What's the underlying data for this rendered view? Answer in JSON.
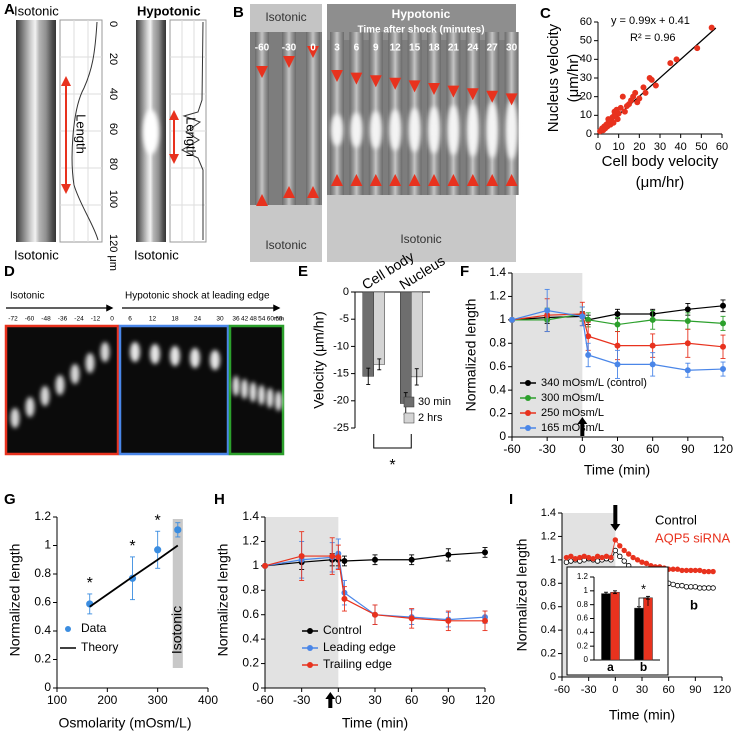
{
  "panels": {
    "A": {
      "panel": "A",
      "top_left": "Isotonic",
      "top_right": "Hypotonic",
      "bottom_left": "Isotonic",
      "bottom_right": "Isotonic",
      "length_left": "Length",
      "length_right": "Length",
      "ticks": [
        0,
        20,
        40,
        60,
        80,
        100,
        "120 μm"
      ]
    },
    "B": {
      "panel": "B",
      "isotonic_top": "Isotonic",
      "hypotonic": "Hypotonic",
      "subtitle": "Time after shock (minutes)",
      "times": [
        -60,
        -30,
        0,
        3,
        6,
        9,
        12,
        15,
        18,
        21,
        24,
        27,
        30
      ],
      "isotonic_bottom_left": "Isotonic",
      "isotonic_bottom_right": "Isotonic"
    },
    "D": {
      "panel": "D",
      "isotonic": "Isotonic",
      "hypotonic": "Hypotonic shock at leading edge",
      "times": [
        -72,
        -60,
        -48,
        -36,
        -24,
        -12,
        0,
        6,
        12,
        18,
        24,
        30,
        36,
        42,
        48,
        54,
        60,
        66
      ],
      "unit": "min"
    }
  },
  "chart_data": [
    {
      "panel": "C",
      "type": "scatter",
      "x_label": [
        "Cell body velocity",
        "(μm/hr)"
      ],
      "y_label": [
        "Nucleus velocity",
        "(μm/hr)"
      ],
      "annotations": [
        "y = 0.99x + 0.41",
        "R² = 0.96"
      ],
      "x": [
        1,
        2,
        2.5,
        3,
        3.5,
        4,
        4.5,
        5,
        5,
        6,
        6,
        7,
        7.5,
        8,
        8,
        9,
        9.5,
        10,
        11,
        12,
        13,
        14,
        15,
        16,
        17,
        18,
        19,
        20,
        22,
        23,
        25,
        26,
        28,
        35,
        38,
        48,
        55
      ],
      "series": [
        {
          "color": "#e8321e",
          "values": [
            1.5,
            3,
            2,
            4,
            3,
            5,
            4,
            6,
            8,
            5,
            7,
            9,
            6,
            10,
            12,
            13,
            8,
            11,
            14,
            20,
            12,
            15,
            16,
            18,
            20,
            22,
            17,
            19,
            25,
            22,
            30,
            29,
            26,
            38,
            40,
            46,
            57
          ]
        }
      ],
      "fit": {
        "color": "#000000",
        "x": [
          0,
          57
        ],
        "values": [
          0.4,
          56.8
        ]
      },
      "xlim": [
        0,
        60
      ],
      "xticks": [
        0,
        10,
        20,
        30,
        40,
        50,
        60
      ],
      "ylim": [
        0,
        60
      ],
      "yticks": [
        0,
        10,
        20,
        30,
        40,
        50,
        60
      ]
    },
    {
      "panel": "E",
      "type": "bar",
      "categories": [
        "Cell body",
        "Nucleus"
      ],
      "y_label": "Velocity (μm/hr)",
      "series": [
        {
          "name": "30 min",
          "color": "#6e6e6e",
          "values": [
            -15.5,
            -20.5
          ],
          "errors": [
            1.5,
            2
          ]
        },
        {
          "name": "2 hrs",
          "color": "#d4d4d4",
          "values": [
            -13.3,
            -15.6
          ],
          "errors": [
            1,
            1.5
          ]
        }
      ],
      "annotations": [
        "*"
      ],
      "ylim": [
        -25,
        0
      ],
      "yticks": [
        0,
        -5,
        -10,
        -15,
        -20,
        -25
      ]
    },
    {
      "panel": "F",
      "type": "line",
      "x": [
        -60,
        -30,
        0,
        5,
        30,
        60,
        90,
        120
      ],
      "x_label": "Time (min)",
      "y_label": "Normalized length",
      "shade": [
        -60,
        0
      ],
      "arrow_at": 0,
      "series": [
        {
          "name": "340 mOsm/L (control)",
          "color": "#000000",
          "values": [
            1,
            1.02,
            1.03,
            1,
            1.05,
            1.05,
            1.09,
            1.12
          ],
          "errors": [
            0,
            0.05,
            0.04,
            0.04,
            0.04,
            0.04,
            0.05,
            0.05
          ]
        },
        {
          "name": "300 mOsm/L",
          "color": "#2ca02c",
          "values": [
            1,
            1,
            1.05,
            1,
            0.96,
            1,
            0.99,
            0.97
          ],
          "errors": [
            0,
            0.1,
            0.06,
            0.06,
            0.06,
            0.08,
            0.07,
            0.06
          ]
        },
        {
          "name": "250 mOsm/L",
          "color": "#e8321e",
          "values": [
            1,
            1.04,
            1.05,
            0.86,
            0.78,
            0.78,
            0.8,
            0.77
          ],
          "errors": [
            0,
            0.14,
            0.1,
            0.12,
            0.12,
            0.1,
            0.12,
            0.1
          ]
        },
        {
          "name": "165 mOsm/L",
          "color": "#4a86e8",
          "values": [
            1,
            1.08,
            1.03,
            0.7,
            0.62,
            0.62,
            0.57,
            0.58
          ],
          "errors": [
            0,
            0.18,
            0.08,
            0.1,
            0.12,
            0.1,
            0.06,
            0.06
          ]
        }
      ],
      "xlim": [
        -60,
        120
      ],
      "xticks": [
        -60,
        -30,
        0,
        30,
        60,
        90,
        120
      ],
      "ylim": [
        0,
        1.4
      ],
      "yticks": [
        0,
        0.2,
        0.4,
        0.6,
        0.8,
        1,
        1.2,
        1.4
      ]
    },
    {
      "panel": "G",
      "type": "scatter",
      "x": [
        165,
        250,
        300,
        340
      ],
      "x_label": "Osmolarity (mOsm/L)",
      "y_label": "Normalized length",
      "series": [
        {
          "name": "Data",
          "color": "#3b8de0",
          "values": [
            0.59,
            0.77,
            0.97,
            1.11
          ],
          "errors": [
            0.07,
            0.15,
            0.13,
            0.05
          ]
        },
        {
          "name": "Theory",
          "type": "line",
          "color": "#000000",
          "x": [
            165,
            250,
            300,
            340
          ],
          "values": [
            0.57,
            0.78,
            0.9,
            1
          ]
        }
      ],
      "annotations": [
        "*",
        "*",
        "*"
      ],
      "band": [
        330,
        350
      ],
      "band_label": "Isotonic",
      "xlim": [
        100,
        400
      ],
      "xticks": [
        100,
        200,
        300,
        400
      ],
      "ylim": [
        0,
        1.2
      ],
      "yticks": [
        0,
        0.2,
        0.4,
        0.6,
        0.8,
        1,
        1.2
      ]
    },
    {
      "panel": "H",
      "type": "line",
      "x": [
        -60,
        -30,
        -5,
        0,
        5,
        30,
        60,
        90,
        120
      ],
      "x_label": "Time (min)",
      "y_label": "Normalized length",
      "shade": [
        -60,
        0
      ],
      "arrow_at": 0,
      "series": [
        {
          "name": "Control",
          "color": "#000000",
          "values": [
            1,
            1.03,
            1.05,
            1.05,
            1.04,
            1.05,
            1.05,
            1.09,
            1.11
          ],
          "errors": [
            0,
            0.06,
            0.05,
            0.05,
            0.04,
            0.04,
            0.04,
            0.05,
            0.04
          ]
        },
        {
          "name": "Leading edge",
          "color": "#4a86e8",
          "values": [
            1,
            1.05,
            1.07,
            1.1,
            0.78,
            0.6,
            0.58,
            0.56,
            0.58
          ],
          "errors": [
            0,
            0.15,
            0.12,
            0.12,
            0.1,
            0.08,
            0.06,
            0.06,
            0.05
          ]
        },
        {
          "name": "Trailing edge",
          "color": "#e8321e",
          "values": [
            1,
            1.08,
            1.08,
            1.07,
            0.73,
            0.6,
            0.57,
            0.55,
            0.55
          ],
          "errors": [
            0,
            0.2,
            0.15,
            0.1,
            0.1,
            0.08,
            0.08,
            0.08,
            0.08
          ]
        }
      ],
      "xlim": [
        -60,
        120
      ],
      "xticks": [
        -60,
        -30,
        0,
        30,
        60,
        90,
        120
      ],
      "ylim": [
        0,
        1.4
      ],
      "yticks": [
        0,
        0.2,
        0.4,
        0.6,
        0.8,
        1,
        1.2,
        1.4
      ]
    },
    {
      "panel": "I",
      "type": "line",
      "x_label": "Time (min)",
      "y_label": "Normalized length",
      "shade": [
        -60,
        0
      ],
      "arrow_at": 0,
      "annotations": [
        "a",
        "b"
      ],
      "x": [
        -55,
        -50,
        -45,
        -40,
        -35,
        -30,
        -25,
        -20,
        -15,
        -10,
        -5,
        0,
        5,
        10,
        15,
        20,
        25,
        30,
        35,
        40,
        45,
        50,
        55,
        60,
        65,
        70,
        75,
        80,
        85,
        90,
        95,
        100,
        105,
        110
      ],
      "series": [
        {
          "name": "Control",
          "color": "#000000",
          "marker": "open-circle",
          "values": [
            0.98,
            0.99,
            1,
            0.99,
            1,
            1.01,
            1,
            0.99,
            1,
            1.01,
            1,
            1.08,
            1.03,
            0.99,
            0.95,
            0.92,
            0.89,
            0.87,
            0.85,
            0.84,
            0.82,
            0.81,
            0.8,
            0.8,
            0.79,
            0.78,
            0.78,
            0.77,
            0.77,
            0.77,
            0.76,
            0.76,
            0.76,
            0.76
          ]
        },
        {
          "name": "AQP5 siRNA",
          "color": "#e8321e",
          "marker": "circle",
          "values": [
            1.02,
            1.03,
            1.01,
            1.02,
            1.03,
            1.02,
            1.01,
            1.03,
            1.02,
            1.03,
            1.02,
            1.17,
            1.12,
            1.08,
            1.05,
            1.02,
            1,
            0.98,
            0.97,
            0.95,
            0.94,
            0.94,
            0.93,
            0.92,
            0.92,
            0.92,
            0.91,
            0.91,
            0.91,
            0.91,
            0.91,
            0.9,
            0.9,
            0.9
          ]
        }
      ],
      "xlim": [
        -60,
        120
      ],
      "xticks": [
        -60,
        -30,
        0,
        30,
        60,
        90,
        120
      ],
      "ylim": [
        0,
        1.4
      ],
      "yticks": [
        0,
        0.2,
        0.4,
        0.6,
        0.8,
        1,
        1.2,
        1.4
      ]
    },
    {
      "type": "bar",
      "categories": [
        "a",
        "b"
      ],
      "annotations": [
        "*"
      ],
      "series": [
        {
          "color": "#000000",
          "values": [
            0.96,
            0.75
          ],
          "errors": [
            0.02,
            0.02
          ]
        },
        {
          "color": "#e8321e",
          "values": [
            0.98,
            0.9
          ],
          "errors": [
            0.02,
            0.02
          ]
        }
      ],
      "ylim": [
        0,
        1.2
      ],
      "yticks": [
        0,
        0.2,
        0.4,
        0.6,
        0.8,
        1,
        1.2
      ]
    }
  ]
}
